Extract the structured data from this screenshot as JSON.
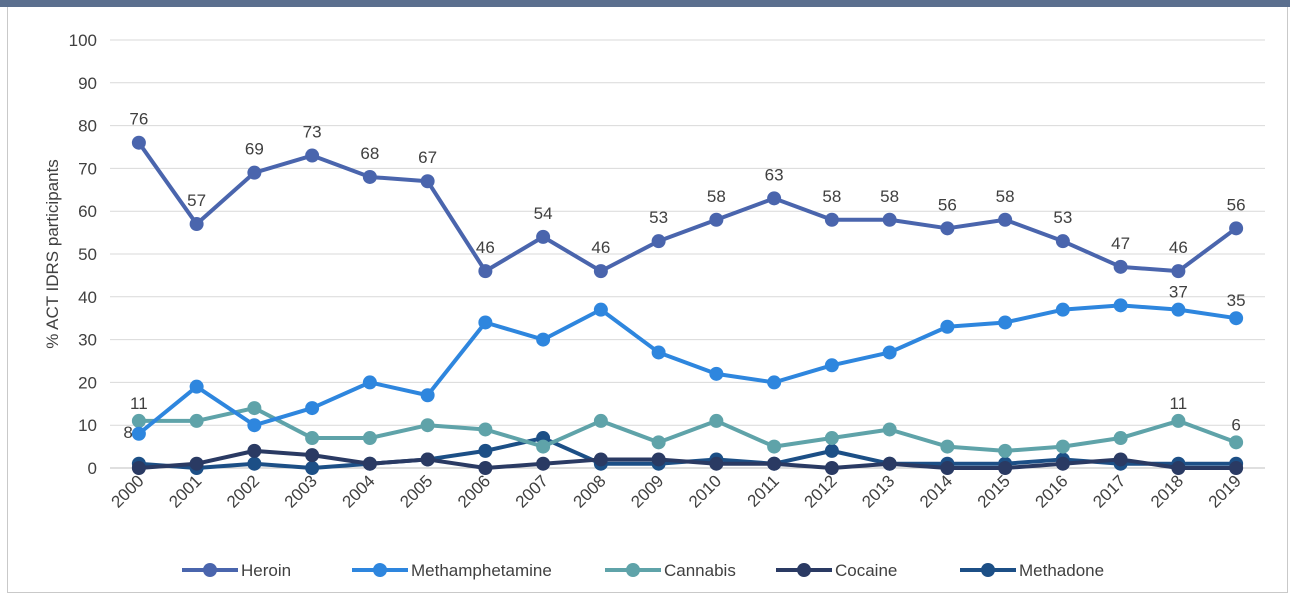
{
  "chart_data": {
    "type": "line",
    "title": "",
    "xlabel": "",
    "ylabel": "% ACT IDRS participants",
    "ylim": [
      0,
      100
    ],
    "yticks": [
      "0",
      "10",
      "20",
      "30",
      "40",
      "50",
      "60",
      "70",
      "80",
      "90",
      "100"
    ],
    "grid": "horizontal",
    "legend_position": "bottom",
    "categories": [
      "2000",
      "2001",
      "2002",
      "2003",
      "2004",
      "2005",
      "2006",
      "2007",
      "2008",
      "2009",
      "2010",
      "2011",
      "2012",
      "2013",
      "2014",
      "2015",
      "2016",
      "2017",
      "2018",
      "2019"
    ],
    "series": [
      {
        "name": "Heroin",
        "color": "#4a65ad",
        "values": [
          76,
          57,
          69,
          73,
          68,
          67,
          46,
          54,
          46,
          53,
          58,
          63,
          58,
          58,
          56,
          58,
          53,
          47,
          46,
          56
        ],
        "labels": [
          {
            "index": 0,
            "text": "76"
          },
          {
            "index": 1,
            "text": "57"
          },
          {
            "index": 2,
            "text": "69"
          },
          {
            "index": 3,
            "text": "73"
          },
          {
            "index": 4,
            "text": "68"
          },
          {
            "index": 5,
            "text": "67"
          },
          {
            "index": 6,
            "text": "46"
          },
          {
            "index": 7,
            "text": "54"
          },
          {
            "index": 8,
            "text": "46"
          },
          {
            "index": 9,
            "text": "53"
          },
          {
            "index": 10,
            "text": "58"
          },
          {
            "index": 11,
            "text": "63"
          },
          {
            "index": 12,
            "text": "58"
          },
          {
            "index": 13,
            "text": "58"
          },
          {
            "index": 14,
            "text": "56"
          },
          {
            "index": 15,
            "text": "58"
          },
          {
            "index": 16,
            "text": "53"
          },
          {
            "index": 17,
            "text": "47"
          },
          {
            "index": 18,
            "text": "46"
          },
          {
            "index": 19,
            "text": "56"
          }
        ]
      },
      {
        "name": "Methamphetamine",
        "color": "#2e86de",
        "values": [
          8,
          19,
          10,
          14,
          20,
          17,
          34,
          30,
          37,
          27,
          22,
          20,
          24,
          27,
          33,
          34,
          37,
          38,
          37,
          35
        ],
        "labels": [
          {
            "index": 0,
            "text": "8"
          },
          {
            "index": 18,
            "text": "37"
          },
          {
            "index": 19,
            "text": "35"
          }
        ]
      },
      {
        "name": "Cannabis",
        "color": "#5fa3a9",
        "values": [
          11,
          11,
          14,
          7,
          7,
          10,
          9,
          5,
          11,
          6,
          11,
          5,
          7,
          9,
          5,
          4,
          5,
          7,
          11,
          6
        ],
        "labels": [
          {
            "index": 0,
            "text": "11"
          },
          {
            "index": 18,
            "text": "11"
          },
          {
            "index": 19,
            "text": "6"
          }
        ]
      },
      {
        "name": "Cocaine",
        "color": "#2a3a63",
        "values": [
          0,
          1,
          4,
          3,
          1,
          2,
          0,
          1,
          2,
          2,
          1,
          1,
          0,
          1,
          0,
          0,
          1,
          2,
          0,
          0
        ],
        "labels": []
      },
      {
        "name": "Methadone",
        "color": "#1c4f86",
        "values": [
          1,
          0,
          1,
          0,
          1,
          2,
          4,
          7,
          1,
          1,
          2,
          1,
          4,
          1,
          1,
          1,
          2,
          1,
          1,
          1
        ],
        "labels": []
      }
    ]
  }
}
